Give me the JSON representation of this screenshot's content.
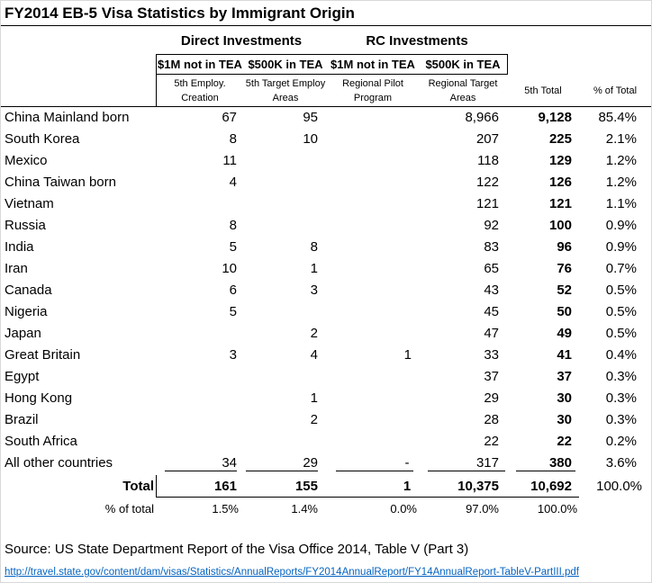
{
  "title": "FY2014 EB-5 Visa Statistics by Immigrant Origin",
  "groups": {
    "direct": "Direct Investments",
    "rc": "RC Investments"
  },
  "subheaders": [
    "$1M not in TEA",
    "$500K in TEA",
    "$1M not in TEA",
    "$500K in TEA"
  ],
  "descriptions": [
    "5th Employ. Creation",
    "5th Target Employ Areas",
    "Regional Pilot Program",
    "Regional Target Areas"
  ],
  "total_header": "5th Total",
  "pct_header": "% of Total",
  "rows": [
    {
      "country": "China Mainland born",
      "c1": "67",
      "c2": "95",
      "c3": "",
      "c4": "8,966",
      "total": "9,128",
      "pct": "85.4%"
    },
    {
      "country": "South Korea",
      "c1": "8",
      "c2": "10",
      "c3": "",
      "c4": "207",
      "total": "225",
      "pct": "2.1%"
    },
    {
      "country": "Mexico",
      "c1": "11",
      "c2": "",
      "c3": "",
      "c4": "118",
      "total": "129",
      "pct": "1.2%"
    },
    {
      "country": "China Taiwan born",
      "c1": "4",
      "c2": "",
      "c3": "",
      "c4": "122",
      "total": "126",
      "pct": "1.2%"
    },
    {
      "country": "Vietnam",
      "c1": "",
      "c2": "",
      "c3": "",
      "c4": "121",
      "total": "121",
      "pct": "1.1%"
    },
    {
      "country": "Russia",
      "c1": "8",
      "c2": "",
      "c3": "",
      "c4": "92",
      "total": "100",
      "pct": "0.9%"
    },
    {
      "country": "India",
      "c1": "5",
      "c2": "8",
      "c3": "",
      "c4": "83",
      "total": "96",
      "pct": "0.9%"
    },
    {
      "country": "Iran",
      "c1": "10",
      "c2": "1",
      "c3": "",
      "c4": "65",
      "total": "76",
      "pct": "0.7%"
    },
    {
      "country": "Canada",
      "c1": "6",
      "c2": "3",
      "c3": "",
      "c4": "43",
      "total": "52",
      "pct": "0.5%"
    },
    {
      "country": "Nigeria",
      "c1": "5",
      "c2": "",
      "c3": "",
      "c4": "45",
      "total": "50",
      "pct": "0.5%"
    },
    {
      "country": "Japan",
      "c1": "",
      "c2": "2",
      "c3": "",
      "c4": "47",
      "total": "49",
      "pct": "0.5%"
    },
    {
      "country": "Great Britain",
      "c1": "3",
      "c2": "4",
      "c3": "1",
      "c4": "33",
      "total": "41",
      "pct": "0.4%"
    },
    {
      "country": "Egypt",
      "c1": "",
      "c2": "",
      "c3": "",
      "c4": "37",
      "total": "37",
      "pct": "0.3%"
    },
    {
      "country": "Hong Kong",
      "c1": "",
      "c2": "1",
      "c3": "",
      "c4": "29",
      "total": "30",
      "pct": "0.3%"
    },
    {
      "country": "Brazil",
      "c1": "",
      "c2": "2",
      "c3": "",
      "c4": "28",
      "total": "30",
      "pct": "0.3%"
    },
    {
      "country": "South Africa",
      "c1": "",
      "c2": "",
      "c3": "",
      "c4": "22",
      "total": "22",
      "pct": "0.2%"
    },
    {
      "country": "All other countries",
      "c1": "34",
      "c2": "29",
      "c3": "-",
      "c4": "317",
      "total": "380",
      "pct": "3.6%"
    }
  ],
  "total_row": {
    "label": "Total",
    "c1": "161",
    "c2": "155",
    "c3": "1",
    "c4": "10,375",
    "total": "10,692",
    "pct": "100.0%"
  },
  "pct_row": {
    "label": "% of total",
    "c1": "1.5%",
    "c2": "1.4%",
    "c3": "0.0%",
    "c4": "97.0%",
    "total": "100.0%"
  },
  "source": "Source: US State Department Report of the Visa Office 2014, Table V (Part 3)",
  "link": "http://travel.state.gov/content/dam/visas/Statistics/AnnualReports/FY2014AnnualReport/FY14AnnualReport-TableV-PartIII.pdf"
}
